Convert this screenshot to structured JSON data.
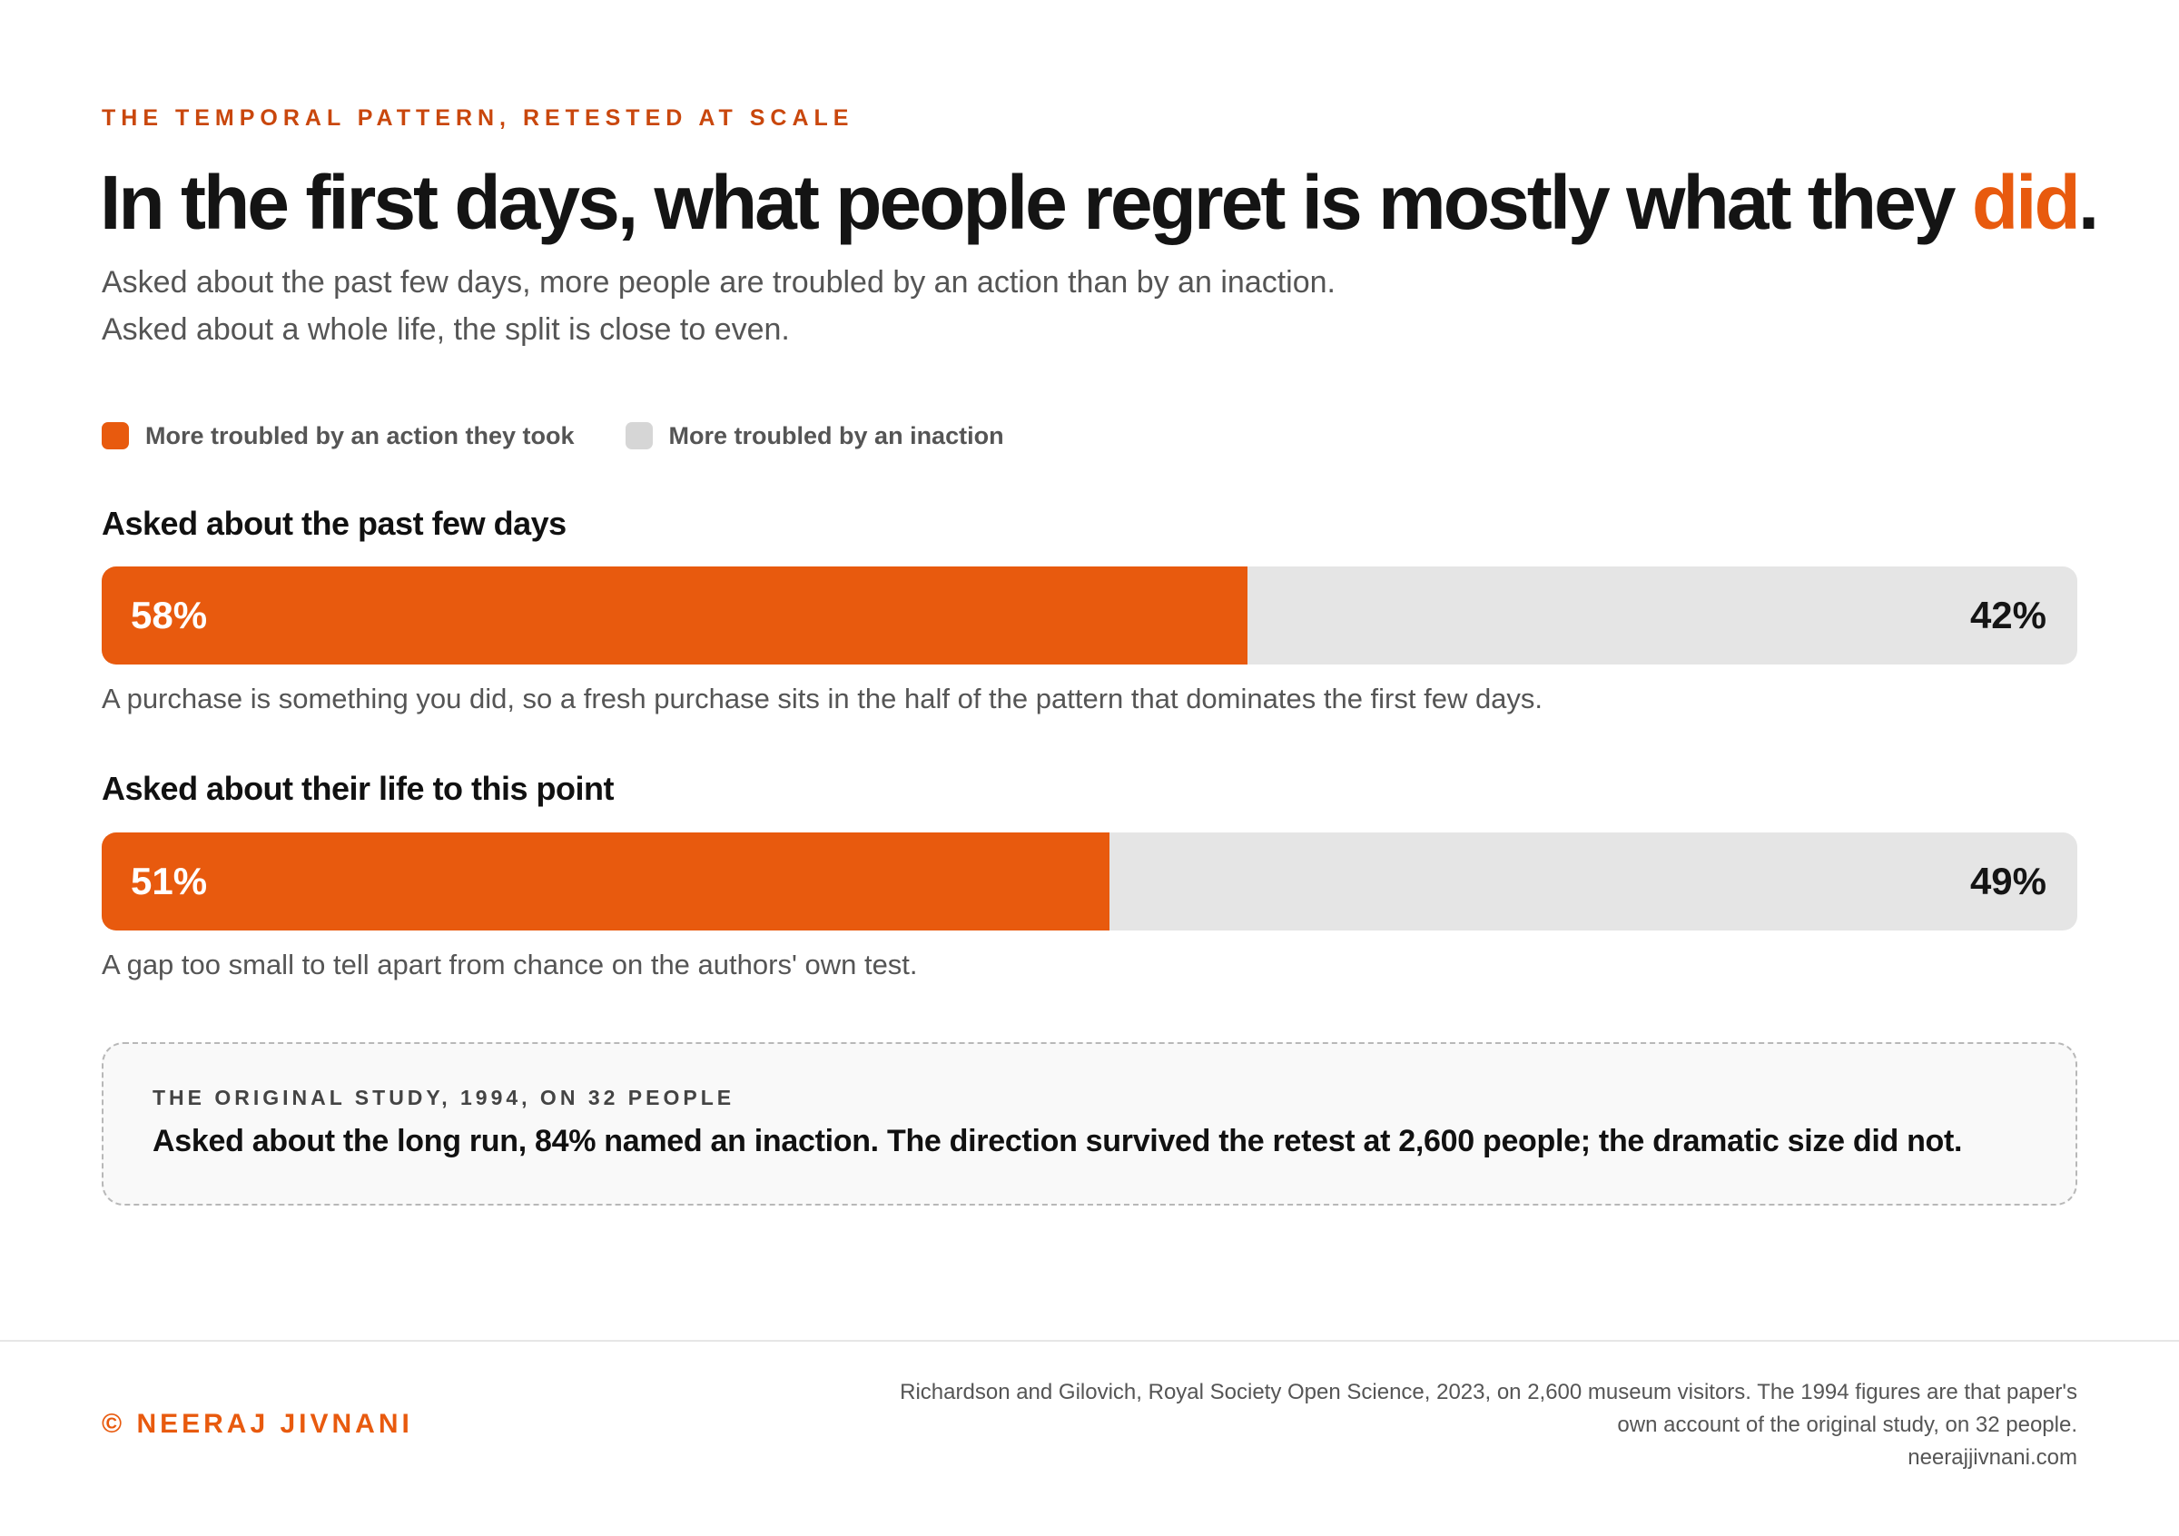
{
  "eyebrow": "THE TEMPORAL PATTERN, RETESTED AT SCALE",
  "headline": {
    "lead": "In the first days, what people regret is mostly what they ",
    "accent": "did",
    "tail": "."
  },
  "subtitle": {
    "line1": "Asked about the past few days, more people are troubled by an action than by an inaction.",
    "line2": "Asked about a whole life, the split is close to even."
  },
  "colors": {
    "action": "#e85a0e",
    "inaction": "#e5e5e5",
    "accent": "#e85a0e",
    "eyebrow": "#c9470d"
  },
  "chart_data": {
    "type": "bar",
    "stacked": true,
    "orientation": "horizontal",
    "unit": "%",
    "categories": [
      "Asked about the past few days",
      "Asked about their life to this point"
    ],
    "series": [
      {
        "name": "More troubled by an action they took",
        "values": [
          58,
          51
        ]
      },
      {
        "name": "More troubled by an inaction",
        "values": [
          42,
          49
        ]
      }
    ],
    "value_labels": [
      {
        "action": "58%",
        "inaction": "42%"
      },
      {
        "action": "51%",
        "inaction": "49%"
      }
    ],
    "notes": [
      "A purchase is something you did, so a fresh purchase sits in the half of the pattern that dominates the first few days.",
      "A gap too small to tell apart from chance on the authors' own test."
    ],
    "legend": "top-left",
    "ylim": [
      0,
      100
    ]
  },
  "callout": {
    "kicker": "THE ORIGINAL STUDY, 1994, ON 32 PEOPLE",
    "body": "Asked about the long run, 84% named an inaction. The direction survived the retest at 2,600 people; the dramatic size did not."
  },
  "footer": {
    "credit": "© NEERAJ JIVNANI",
    "source_line1": "Richardson and Gilovich, Royal Society Open Science, 2023, on 2,600 museum visitors. The 1994 figures are that paper's",
    "source_line2": "own account of the original study, on 32 people.",
    "website": "neerajjivnani.com"
  }
}
